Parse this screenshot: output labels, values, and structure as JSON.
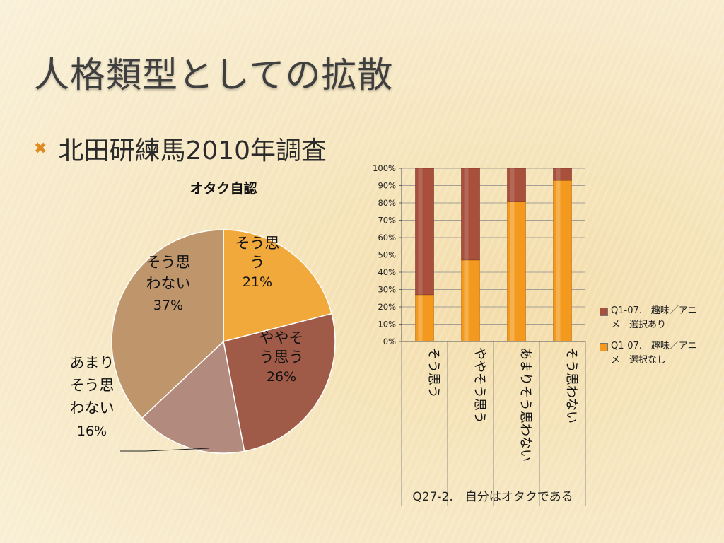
{
  "slide": {
    "title": "人格類型としての拡散",
    "bullet": "北田研練馬2010年調査",
    "bullet_icon": "x-mark-icon"
  },
  "colors": {
    "accent": "#e3a24a",
    "pie": [
      "#f0a93a",
      "#9f5a48",
      "#b38a7e",
      "#bf956c"
    ],
    "bar_top": "#a8503c",
    "bar_bottom": "#f39a1e"
  },
  "chart_data": [
    {
      "type": "pie",
      "title": "オタク自認",
      "slices": [
        {
          "label": "そう思う",
          "label_lines": [
            "そう思",
            "う"
          ],
          "pct_label": "21%",
          "value": 21
        },
        {
          "label": "ややそう思う",
          "label_lines": [
            "ややそ",
            "う思う"
          ],
          "pct_label": "26%",
          "value": 26
        },
        {
          "label": "あまりそう思わない",
          "label_lines": [
            "あまり",
            "そう思",
            "わない"
          ],
          "pct_label": "16%",
          "value": 16
        },
        {
          "label": "そう思わない",
          "label_lines": [
            "そう思",
            "わない"
          ],
          "pct_label": "37%",
          "value": 37
        }
      ]
    },
    {
      "type": "bar",
      "stacked": true,
      "xlabel": "Q27-2.　自分はオタクである",
      "categories": [
        "そう思う",
        "ややそう思う",
        "あまりそう思わない",
        "そう思わない"
      ],
      "ylim": [
        0,
        100
      ],
      "yticks": [
        "0%",
        "10%",
        "20%",
        "30%",
        "40%",
        "50%",
        "60%",
        "70%",
        "80%",
        "90%",
        "100%"
      ],
      "series": [
        {
          "name": "Q1-07.　趣味／アニメ　選択なし",
          "values": [
            27,
            47,
            81,
            93
          ]
        },
        {
          "name": "Q1-07.　趣味／アニメ　選択あり",
          "values": [
            73,
            53,
            19,
            7
          ]
        }
      ],
      "legend_position": "right",
      "legend": [
        {
          "label_line1": "Q1-07.　趣味／アニ",
          "label_line2": "メ　選択あり"
        },
        {
          "label_line1": "Q1-07.　趣味／アニ",
          "label_line2": "メ　選択なし"
        }
      ]
    }
  ]
}
